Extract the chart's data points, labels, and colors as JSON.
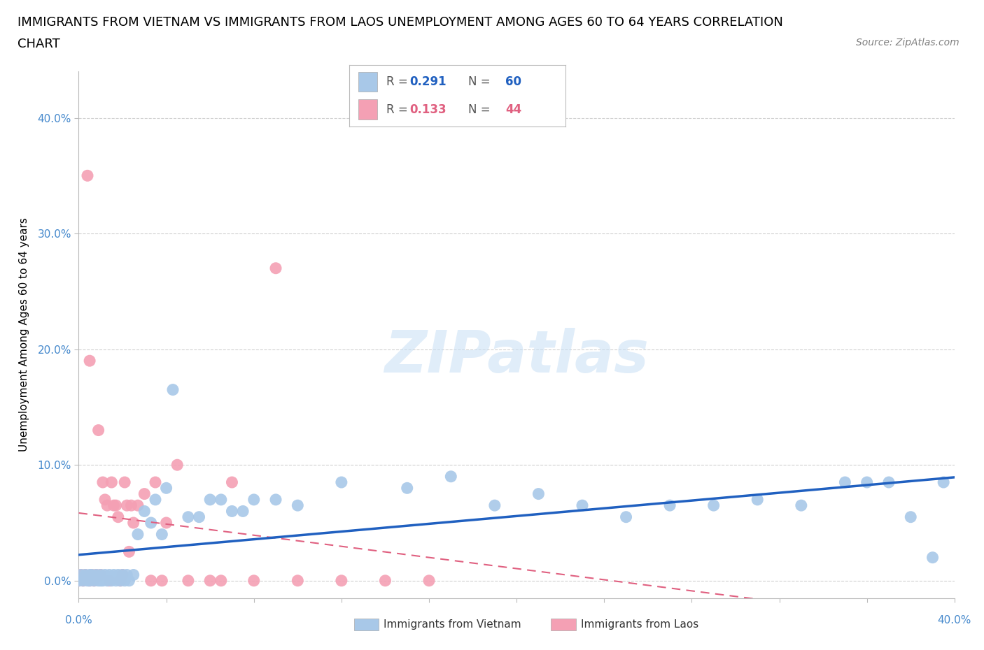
{
  "title_line1": "IMMIGRANTS FROM VIETNAM VS IMMIGRANTS FROM LAOS UNEMPLOYMENT AMONG AGES 60 TO 64 YEARS CORRELATION",
  "title_line2": "CHART",
  "source": "Source: ZipAtlas.com",
  "ylabel": "Unemployment Among Ages 60 to 64 years",
  "xlim": [
    0.0,
    0.4
  ],
  "ylim": [
    -0.015,
    0.44
  ],
  "ytick_vals": [
    0.0,
    0.1,
    0.2,
    0.3,
    0.4
  ],
  "ytick_labels": [
    "0.0%",
    "10.0%",
    "20.0%",
    "30.0%",
    "40.0%"
  ],
  "xtick_vals": [
    0.0,
    0.04,
    0.08,
    0.12,
    0.16,
    0.2,
    0.24,
    0.28,
    0.32,
    0.36,
    0.4
  ],
  "vietnam_R": 0.291,
  "vietnam_N": 60,
  "laos_R": 0.133,
  "laos_N": 44,
  "vietnam_color": "#a8c8e8",
  "laos_color": "#f4a0b4",
  "vietnam_line_color": "#2060c0",
  "laos_line_color": "#e06080",
  "background_color": "#ffffff",
  "grid_color": "#d0d0d0",
  "tick_color": "#4488cc",
  "title_fontsize": 13,
  "vietnam_x": [
    0.0,
    0.001,
    0.002,
    0.003,
    0.004,
    0.005,
    0.005,
    0.006,
    0.007,
    0.008,
    0.009,
    0.01,
    0.01,
    0.011,
    0.012,
    0.013,
    0.014,
    0.015,
    0.016,
    0.017,
    0.018,
    0.019,
    0.02,
    0.021,
    0.022,
    0.023,
    0.025,
    0.027,
    0.03,
    0.033,
    0.035,
    0.038,
    0.04,
    0.043,
    0.05,
    0.055,
    0.06,
    0.065,
    0.07,
    0.075,
    0.08,
    0.09,
    0.1,
    0.12,
    0.15,
    0.17,
    0.19,
    0.21,
    0.23,
    0.25,
    0.27,
    0.29,
    0.31,
    0.33,
    0.35,
    0.36,
    0.37,
    0.38,
    0.39,
    0.395
  ],
  "vietnam_y": [
    0.0,
    0.005,
    0.0,
    0.005,
    0.0,
    0.005,
    0.0,
    0.005,
    0.0,
    0.005,
    0.0,
    0.005,
    0.0,
    0.0,
    0.005,
    0.0,
    0.005,
    0.0,
    0.005,
    0.0,
    0.005,
    0.0,
    0.005,
    0.0,
    0.005,
    0.0,
    0.005,
    0.04,
    0.06,
    0.05,
    0.07,
    0.04,
    0.08,
    0.165,
    0.055,
    0.055,
    0.07,
    0.07,
    0.06,
    0.06,
    0.07,
    0.07,
    0.065,
    0.085,
    0.08,
    0.09,
    0.065,
    0.075,
    0.065,
    0.055,
    0.065,
    0.065,
    0.07,
    0.065,
    0.085,
    0.085,
    0.085,
    0.055,
    0.02,
    0.085
  ],
  "laos_x": [
    0.0,
    0.001,
    0.002,
    0.003,
    0.004,
    0.005,
    0.005,
    0.006,
    0.007,
    0.008,
    0.009,
    0.01,
    0.011,
    0.012,
    0.013,
    0.014,
    0.015,
    0.016,
    0.017,
    0.018,
    0.019,
    0.02,
    0.021,
    0.022,
    0.023,
    0.024,
    0.025,
    0.027,
    0.03,
    0.033,
    0.035,
    0.038,
    0.04,
    0.045,
    0.05,
    0.06,
    0.065,
    0.07,
    0.08,
    0.09,
    0.1,
    0.12,
    0.14,
    0.16
  ],
  "laos_y": [
    0.0,
    0.005,
    0.0,
    0.005,
    0.35,
    0.0,
    0.19,
    0.005,
    0.0,
    0.005,
    0.13,
    0.005,
    0.085,
    0.07,
    0.065,
    0.0,
    0.085,
    0.065,
    0.065,
    0.055,
    0.0,
    0.005,
    0.085,
    0.065,
    0.025,
    0.065,
    0.05,
    0.065,
    0.075,
    0.0,
    0.085,
    0.0,
    0.05,
    0.1,
    0.0,
    0.0,
    0.0,
    0.085,
    0.0,
    0.27,
    0.0,
    0.0,
    0.0,
    0.0
  ],
  "legend_vietnam_label": "R = 0.291   N = 60",
  "legend_laos_label": "R = 0.133   N = 44",
  "bottom_legend_vietnam": "Immigrants from Vietnam",
  "bottom_legend_laos": "Immigrants from Laos",
  "watermark_text": "ZIPatlas",
  "watermark_color": "#c8dff5"
}
